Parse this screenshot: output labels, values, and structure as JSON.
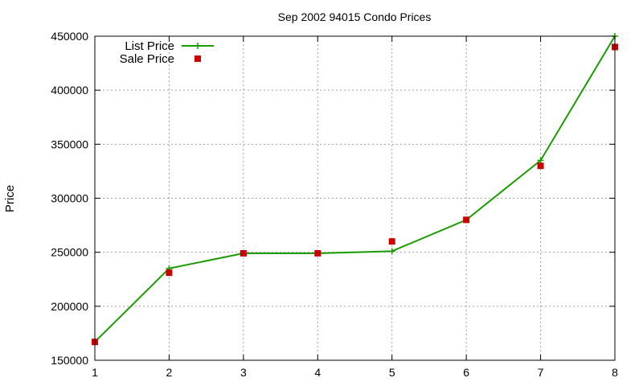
{
  "chart_data": {
    "type": "line",
    "title": "Sep 2002 94015 Condo Prices",
    "xlabel": "",
    "ylabel": "Price",
    "x": [
      1,
      2,
      3,
      4,
      5,
      6,
      7,
      8
    ],
    "xlim": [
      1,
      8
    ],
    "ylim": [
      150000,
      450000
    ],
    "yticks": [
      150000,
      200000,
      250000,
      300000,
      350000,
      400000,
      450000
    ],
    "xticks": [
      1,
      2,
      3,
      4,
      5,
      6,
      7,
      8
    ],
    "grid": true,
    "legend_position": "top-left",
    "series": [
      {
        "name": "List Price",
        "style": "line-plus",
        "color": "#1a9c00",
        "values": [
          167000,
          235000,
          249000,
          249000,
          251000,
          280000,
          335000,
          450000
        ]
      },
      {
        "name": "Sale Price",
        "style": "square-points",
        "color": "#cc0000",
        "values": [
          167000,
          231000,
          249000,
          249000,
          260000,
          280000,
          330000,
          440000
        ]
      }
    ]
  }
}
